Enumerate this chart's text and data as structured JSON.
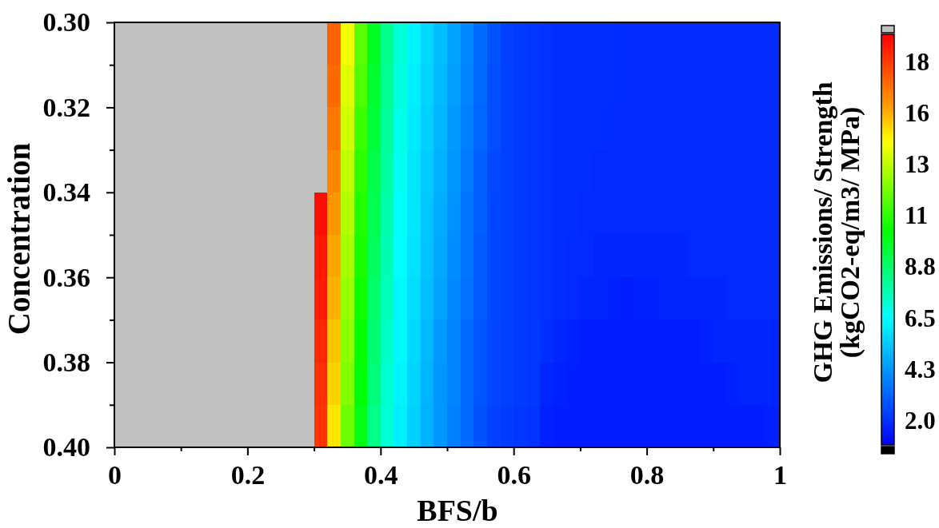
{
  "chart_data": {
    "type": "heatmap",
    "xlabel": "BFS/b",
    "ylabel": "Concentration",
    "clabel": "GHG Emissions/ Strength\n(kgCO2-eq/m3/ MPa)",
    "xlim": [
      0,
      1
    ],
    "xticks": [
      0,
      {
        "value": 0.1,
        "label": null
      },
      0.2,
      {
        "value": 0.3,
        "label": null
      },
      0.4,
      {
        "value": 0.5,
        "label": null
      },
      0.6,
      {
        "value": 0.7,
        "label": null
      },
      0.8,
      {
        "value": 0.9,
        "label": null
      },
      1
    ],
    "ylim": [
      0.4,
      0.3
    ],
    "yticks": [
      {
        "value": 0.3,
        "label": "0.30"
      },
      {
        "value": 0.31,
        "label": null
      },
      0.32,
      {
        "value": 0.33,
        "label": null
      },
      0.34,
      {
        "value": 0.35,
        "label": null
      },
      0.36,
      {
        "value": 0.37,
        "label": null
      },
      0.38,
      {
        "value": 0.39,
        "label": null
      },
      {
        "value": 0.4,
        "label": "0.40"
      }
    ],
    "clim": [
      0.87,
      19.18
    ],
    "cticks": [
      {
        "value": 1.97,
        "label": "2.0"
      },
      {
        "value": 4.26,
        "label": "4.3"
      },
      {
        "value": 6.54,
        "label": "6.5"
      },
      {
        "value": 8.83,
        "label": "8.8"
      },
      {
        "value": 11.11,
        "label": "11"
      },
      {
        "value": 13.4,
        "label": "13"
      },
      {
        "value": 15.68,
        "label": "16"
      },
      {
        "value": 17.97,
        "label": "18"
      }
    ],
    "cells": [
      [
        null,
        null,
        null,
        null,
        null,
        null,
        null,
        null,
        null,
        null,
        null,
        null,
        null,
        null,
        null,
        null,
        17.2,
        14.2,
        11.8,
        9.9,
        8.3,
        7.2,
        6.3,
        5.7,
        5.1,
        4.5,
        3.9,
        3.3,
        2.7,
        2.3,
        2.2,
        2.1,
        2.0,
        1.9,
        1.9,
        1.9,
        1.9,
        1.9,
        1.8,
        1.8,
        1.8,
        1.8,
        1.8,
        1.8,
        1.8,
        1.8,
        1.8,
        1.8,
        1.8,
        1.8
      ],
      [
        null,
        null,
        null,
        null,
        null,
        null,
        null,
        null,
        null,
        null,
        null,
        null,
        null,
        null,
        null,
        null,
        17.0,
        13.9,
        11.6,
        9.7,
        8.2,
        7.0,
        6.2,
        5.6,
        5.0,
        4.4,
        3.8,
        3.2,
        2.6,
        2.3,
        2.2,
        2.1,
        2.0,
        1.9,
        1.9,
        1.9,
        1.9,
        1.9,
        1.8,
        1.8,
        1.8,
        1.8,
        1.8,
        1.8,
        1.8,
        1.8,
        1.8,
        1.8,
        1.8,
        1.8
      ],
      [
        null,
        null,
        null,
        null,
        null,
        null,
        null,
        null,
        null,
        null,
        null,
        null,
        null,
        null,
        null,
        null,
        16.7,
        13.7,
        11.3,
        9.5,
        8.1,
        6.9,
        6.1,
        5.5,
        4.9,
        4.3,
        3.7,
        3.1,
        2.6,
        2.3,
        2.2,
        2.1,
        2.0,
        1.9,
        1.9,
        1.9,
        1.9,
        1.8,
        1.8,
        1.8,
        1.8,
        1.8,
        1.8,
        1.8,
        1.8,
        1.8,
        1.8,
        1.8,
        1.8,
        1.8
      ],
      [
        null,
        null,
        null,
        null,
        null,
        null,
        null,
        null,
        null,
        null,
        null,
        null,
        null,
        null,
        null,
        null,
        16.4,
        13.4,
        11.1,
        9.3,
        8.0,
        6.8,
        6.0,
        5.4,
        4.8,
        4.2,
        3.6,
        3.0,
        2.5,
        2.3,
        2.2,
        2.1,
        2.0,
        1.9,
        1.9,
        1.9,
        1.8,
        1.8,
        1.8,
        1.8,
        1.8,
        1.8,
        1.8,
        1.8,
        1.8,
        1.8,
        1.8,
        1.8,
        1.8,
        1.8
      ],
      [
        null,
        null,
        null,
        null,
        null,
        null,
        null,
        null,
        null,
        null,
        null,
        null,
        null,
        null,
        null,
        18.9,
        16.1,
        13.2,
        10.9,
        9.2,
        7.8,
        6.6,
        6.0,
        5.3,
        4.7,
        4.1,
        3.5,
        3.0,
        2.4,
        2.3,
        2.2,
        2.1,
        2.0,
        1.9,
        1.9,
        1.8,
        1.8,
        1.8,
        1.8,
        1.8,
        1.8,
        1.8,
        1.8,
        1.8,
        1.8,
        1.8,
        1.8,
        1.8,
        1.8,
        1.8
      ],
      [
        null,
        null,
        null,
        null,
        null,
        null,
        null,
        null,
        null,
        null,
        null,
        null,
        null,
        null,
        null,
        18.7,
        15.8,
        13.0,
        10.8,
        9.0,
        7.7,
        6.5,
        5.9,
        5.2,
        4.6,
        4.0,
        3.5,
        2.9,
        2.4,
        2.3,
        2.2,
        2.1,
        2.0,
        1.9,
        1.8,
        1.8,
        1.7,
        1.7,
        1.7,
        1.7,
        1.7,
        1.7,
        1.7,
        1.8,
        1.8,
        1.8,
        1.8,
        1.8,
        1.8,
        1.8
      ],
      [
        null,
        null,
        null,
        null,
        null,
        null,
        null,
        null,
        null,
        null,
        null,
        null,
        null,
        null,
        null,
        18.6,
        15.6,
        12.8,
        10.6,
        8.8,
        7.6,
        6.4,
        5.8,
        5.1,
        4.5,
        3.9,
        3.4,
        2.9,
        2.4,
        2.3,
        2.2,
        2.1,
        2.0,
        1.9,
        1.8,
        1.7,
        1.7,
        1.6,
        1.5,
        1.6,
        1.6,
        1.7,
        1.7,
        1.7,
        1.7,
        1.7,
        1.8,
        1.8,
        1.8,
        1.8
      ],
      [
        null,
        null,
        null,
        null,
        null,
        null,
        null,
        null,
        null,
        null,
        null,
        null,
        null,
        null,
        null,
        18.4,
        15.3,
        12.6,
        10.4,
        8.7,
        7.4,
        6.4,
        5.7,
        5.0,
        4.3,
        3.8,
        3.3,
        2.8,
        2.4,
        2.3,
        2.2,
        2.1,
        1.9,
        1.7,
        1.6,
        1.5,
        1.5,
        1.5,
        1.5,
        1.5,
        1.5,
        1.5,
        1.5,
        1.5,
        1.6,
        1.7,
        1.7,
        1.7,
        1.7,
        1.7
      ],
      [
        null,
        null,
        null,
        null,
        null,
        null,
        null,
        null,
        null,
        null,
        null,
        null,
        null,
        null,
        null,
        18.2,
        15.1,
        12.4,
        10.3,
        8.6,
        7.3,
        6.3,
        5.6,
        4.9,
        4.2,
        3.8,
        3.2,
        2.8,
        2.4,
        2.3,
        2.2,
        2.1,
        1.7,
        1.6,
        1.5,
        1.5,
        1.5,
        1.5,
        1.5,
        1.5,
        1.5,
        1.5,
        1.5,
        1.5,
        1.5,
        1.5,
        1.6,
        1.7,
        1.7,
        1.7
      ],
      [
        null,
        null,
        null,
        null,
        null,
        null,
        null,
        null,
        null,
        null,
        null,
        null,
        null,
        null,
        null,
        18.1,
        14.8,
        12.1,
        10.1,
        8.4,
        7.2,
        6.2,
        5.5,
        4.8,
        4.2,
        3.7,
        3.2,
        2.7,
        2.3,
        2.2,
        2.1,
        2.0,
        1.6,
        1.5,
        1.5,
        1.5,
        1.5,
        1.5,
        1.5,
        1.5,
        1.5,
        1.5,
        1.5,
        1.5,
        1.5,
        1.5,
        1.5,
        1.5,
        1.5,
        1.6
      ]
    ]
  }
}
